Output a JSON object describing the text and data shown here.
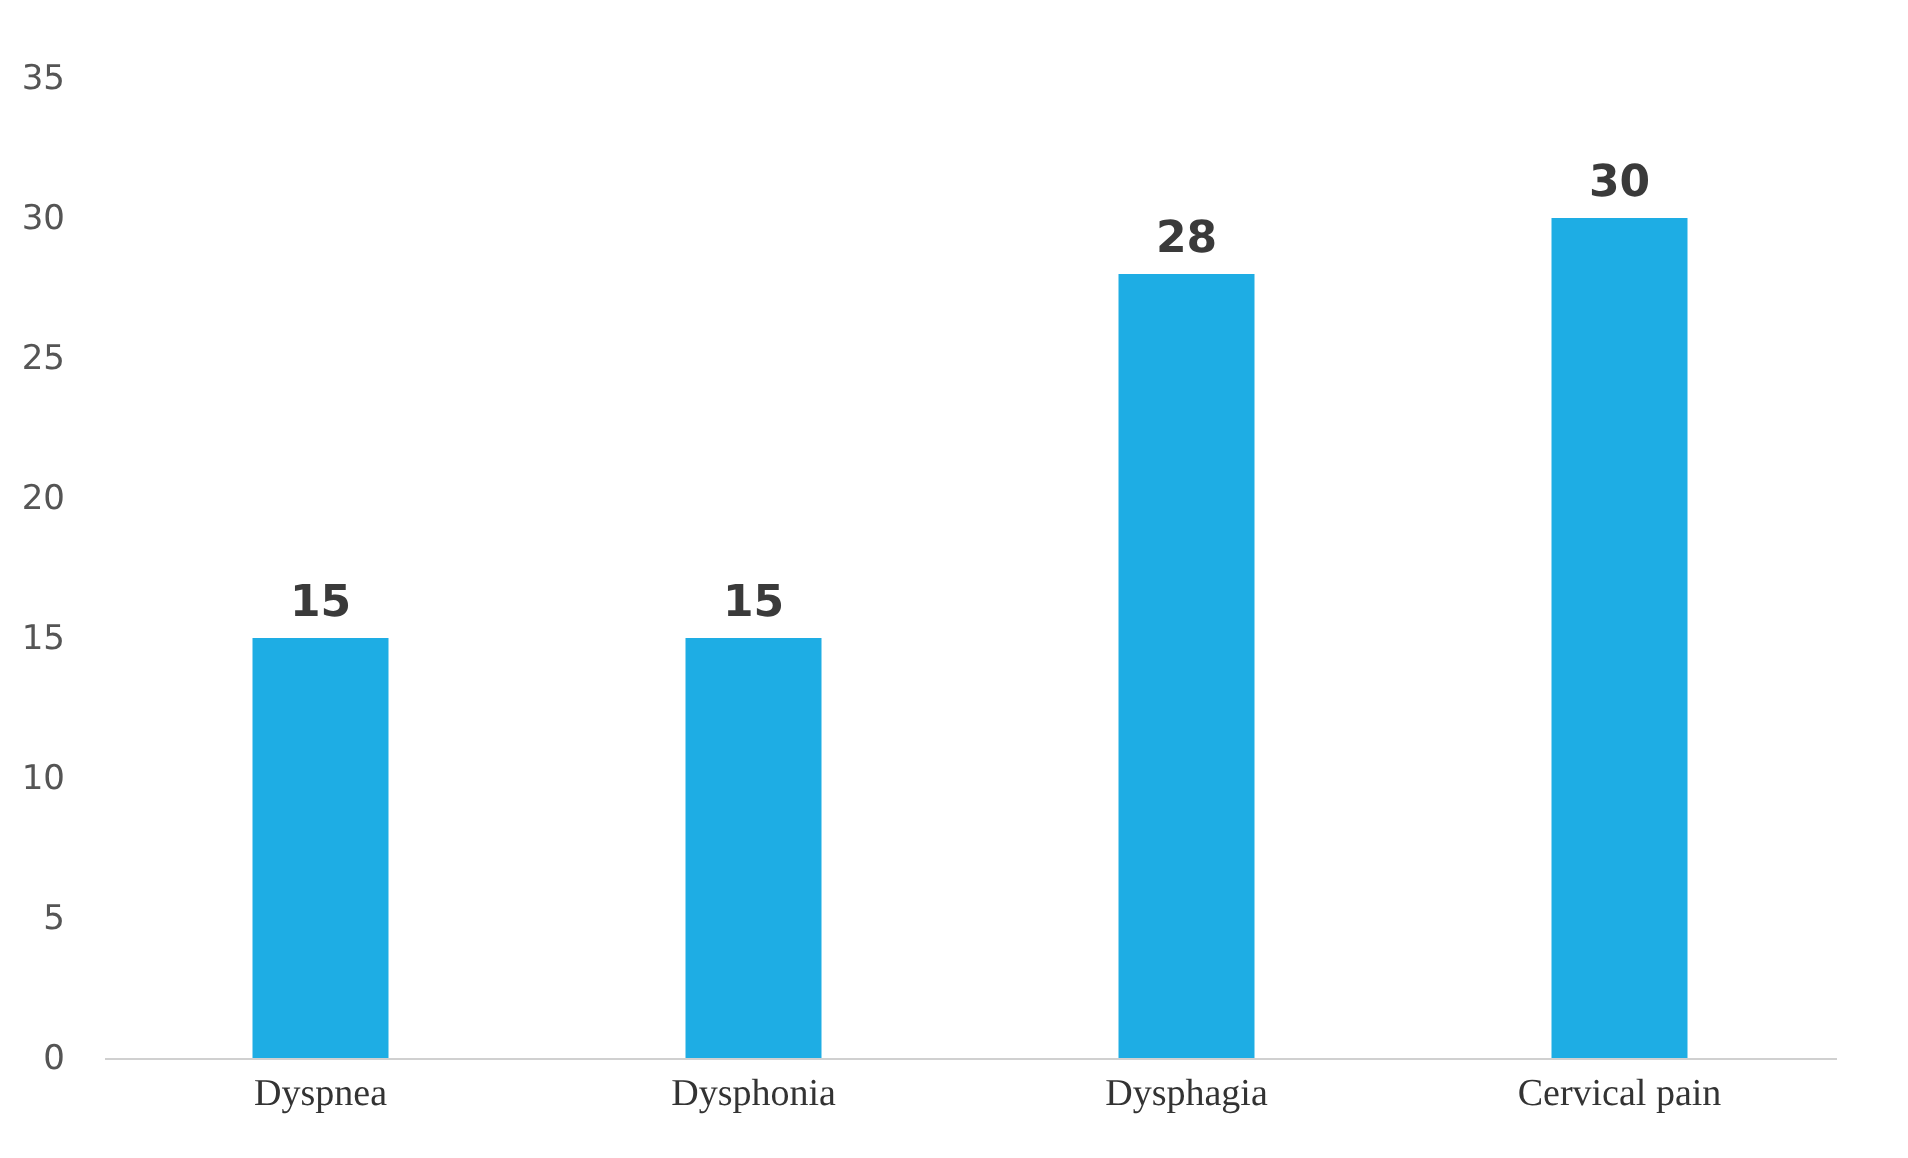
{
  "chart_data": {
    "type": "bar",
    "categories": [
      "Dyspnea",
      "Dysphonia",
      "Dysphagia",
      "Cervical pain"
    ],
    "values": [
      15,
      15,
      28,
      30
    ],
    "color": "#1eade4",
    "ylim": [
      0,
      35
    ],
    "yticks": [
      0,
      5,
      10,
      15,
      20,
      25,
      30,
      35
    ],
    "grid": false,
    "data_labels": true
  }
}
